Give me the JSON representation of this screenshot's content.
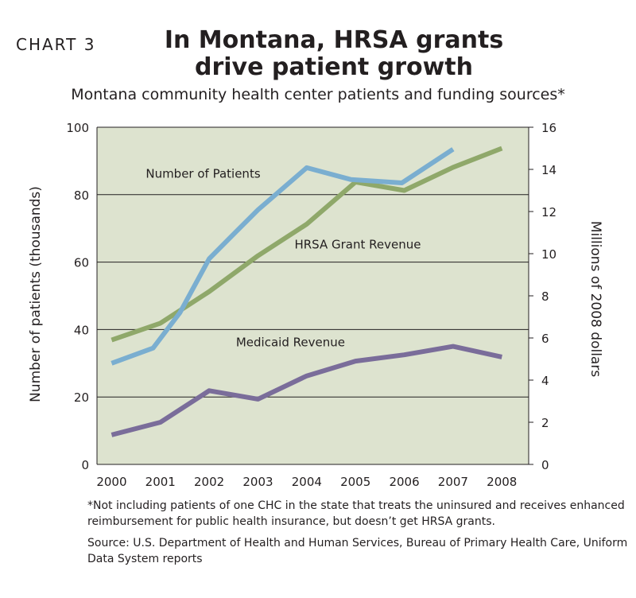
{
  "chart_label": "CHART 3",
  "title_line1": "In Montana, HRSA grants",
  "title_line2": "drive patient growth",
  "subtitle": "Montana community health center patients and funding sources*",
  "footnote": "*Not including patients of one CHC in the state that treats the uninsured and receives enhanced reimbursement for public health insurance, but doesn’t get HRSA grants.",
  "source": "Source: U.S. Department of Health and Human Services, Bureau of Primary Health Care, Uniform Data System reports",
  "chart_data": {
    "type": "line",
    "title": "In Montana, HRSA grants drive patient growth",
    "subtitle": "Montana community health center patients and funding sources*",
    "categories": [
      "2000",
      "2001",
      "2002",
      "2003",
      "2004",
      "2005",
      "2006",
      "2007",
      "2008"
    ],
    "ylabel_left": "Number of patients (thousands)",
    "ylabel_right": "Millions of 2008 dollars",
    "ylim_left": [
      0,
      100
    ],
    "ylim_right": [
      0,
      16
    ],
    "yticks_left": [
      "0",
      "20",
      "40",
      "60",
      "80",
      "100"
    ],
    "yticks_right": [
      "0",
      "2",
      "4",
      "6",
      "8",
      "10",
      "12",
      "14",
      "16"
    ],
    "grid": true,
    "background_color": "#dde3cf",
    "series": [
      {
        "name": "Number of Patients",
        "axis": "left",
        "color": "#7aaed0",
        "x": [
          2000,
          2000.85,
          2001.4,
          2002,
          2002.55,
          2003,
          2004,
          2004.9,
          2005.95,
          2007
        ],
        "values": [
          30,
          34.5,
          45,
          61,
          69,
          75.5,
          88,
          84.5,
          83.5,
          93.5
        ]
      },
      {
        "name": "HRSA Grant Revenue",
        "axis": "right",
        "color": "#8fa86a",
        "x": [
          2000,
          2001,
          2002,
          2003,
          2004,
          2005,
          2006,
          2007,
          2008
        ],
        "values": [
          5.9,
          6.7,
          8.2,
          9.9,
          11.4,
          13.4,
          13.0,
          14.1,
          15.0
        ]
      },
      {
        "name": "Medicaid Revenue",
        "axis": "right",
        "color": "#7a6d9a",
        "x": [
          2000,
          2001,
          2002,
          2003,
          2004,
          2005,
          2006,
          2007,
          2008
        ],
        "values": [
          1.4,
          2.0,
          3.5,
          3.1,
          4.2,
          4.9,
          5.2,
          5.6,
          5.1
        ]
      }
    ]
  }
}
